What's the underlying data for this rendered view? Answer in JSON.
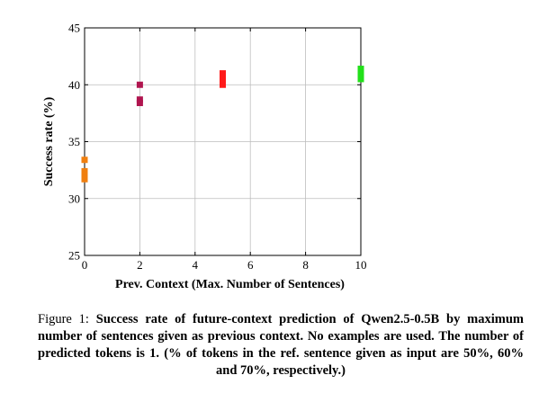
{
  "chart_data": {
    "type": "scatter",
    "title": "",
    "xlabel": "Prev. Context (Max. Number of Sentences)",
    "ylabel": "Success rate (%)",
    "xlim": [
      0,
      10
    ],
    "ylim": [
      25,
      45
    ],
    "xticks": [
      0,
      2,
      4,
      6,
      8,
      10
    ],
    "yticks": [
      25,
      30,
      35,
      40,
      45
    ],
    "grid": true,
    "legend": "none",
    "series": [
      {
        "color": "#f07f0f",
        "x": [
          0,
          0,
          0,
          0,
          0
        ],
        "y": [
          33.4,
          32.4,
          32.1,
          31.9,
          31.7
        ]
      },
      {
        "color": "#b0154f",
        "x": [
          2,
          2,
          2
        ],
        "y": [
          40.0,
          38.7,
          38.4
        ]
      },
      {
        "color": "#ff1a1a",
        "x": [
          5,
          5,
          5,
          5
        ],
        "y": [
          41.0,
          40.7,
          40.4,
          40.0
        ]
      },
      {
        "color": "#22e01a",
        "x": [
          10,
          10,
          10,
          10
        ],
        "y": [
          41.4,
          41.1,
          40.8,
          40.5
        ]
      }
    ]
  },
  "caption": {
    "prefix": "Figure 1:",
    "text": "Success rate of future-context prediction of Qwen2.5-0.5B by maximum number of sentences given as previous context.  No examples are used.  The number of predicted tokens is 1.  (% of tokens in the ref. sentence given as input are 50%, 60% and 70%, respectively.)"
  }
}
